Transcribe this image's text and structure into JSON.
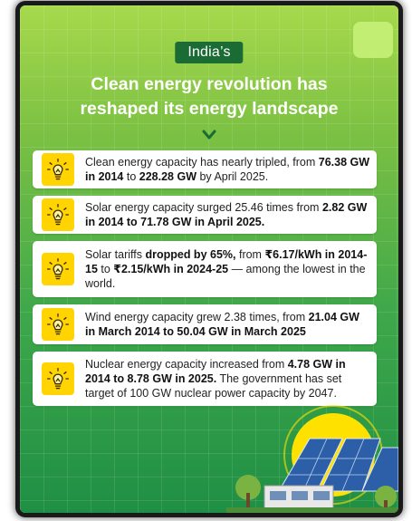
{
  "header": {
    "pill": "India’s",
    "headline_line1": "Clean energy revolution has",
    "headline_line2": "reshaped its energy landscape"
  },
  "facts": [
    {
      "icon": "lightbulb-icon",
      "parts": [
        {
          "t": "Clean energy capacity has nearly tripled, from ",
          "b": false
        },
        {
          "t": "76.38 GW in 2014",
          "b": true
        },
        {
          "t": " to ",
          "b": false
        },
        {
          "t": "228.28 GW",
          "b": true
        },
        {
          "t": " by April 2025.",
          "b": false
        }
      ]
    },
    {
      "icon": "lightbulb-icon",
      "parts": [
        {
          "t": "Solar energy capacity surged 25.46 times from ",
          "b": false
        },
        {
          "t": "2.82 GW in 2014 to 71.78 GW in April 2025.",
          "b": true
        }
      ]
    },
    {
      "icon": "lightbulb-icon",
      "parts": [
        {
          "t": "Solar tariffs ",
          "b": false
        },
        {
          "t": "dropped by 65%,",
          "b": true
        },
        {
          "t": " from ",
          "b": false
        },
        {
          "t": "₹6.17/kWh in 2014-15",
          "b": true
        },
        {
          "t": " to ",
          "b": false
        },
        {
          "t": "₹2.15/kWh in 2024-25",
          "b": true
        },
        {
          "t": " — among the lowest in the world.",
          "b": false
        }
      ]
    },
    {
      "icon": "lightbulb-icon",
      "parts": [
        {
          "t": "Wind energy capacity grew 2.38 times, from ",
          "b": false
        },
        {
          "t": "21.04 GW in March 2014 to 50.04 GW in March 2025",
          "b": true
        }
      ]
    },
    {
      "icon": "lightbulb-icon",
      "parts": [
        {
          "t": "Nuclear energy capacity increased from ",
          "b": false
        },
        {
          "t": "4.78 GW in 2014 to 8.78 GW in 2025.",
          "b": true
        },
        {
          "t": " The government has set target of 100 GW nuclear power capacity by 2047.",
          "b": false
        }
      ]
    }
  ],
  "colors": {
    "accent_yellow": "#ffd400",
    "pill_green": "#1b6b35"
  }
}
